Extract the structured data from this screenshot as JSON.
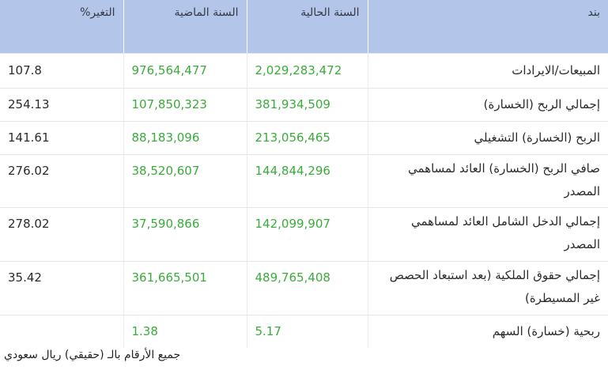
{
  "table": {
    "headers": {
      "item": "بند",
      "current": "السنة الحالية",
      "previous": "السنة الماضية",
      "change": "التغير%"
    },
    "rows": [
      {
        "item": "المبيعات/الايرادات",
        "current": "2,029,283,472",
        "previous": "976,564,477",
        "change": "107.8"
      },
      {
        "item": "إجمالي الربح (الخسارة)",
        "current": "381,934,509",
        "previous": "107,850,323",
        "change": "254.13"
      },
      {
        "item": "الربح (الخسارة) التشغيلي",
        "current": "213,056,465",
        "previous": "88,183,096",
        "change": "141.61"
      },
      {
        "item": "صافي الربح (الخسارة) العائد لمساهمي المصدر",
        "current": "144,844,296",
        "previous": "38,520,607",
        "change": "276.02"
      },
      {
        "item": "إجمالي الدخل الشامل العائد لمساهمي المصدر",
        "current": "142,099,907",
        "previous": "37,590,866",
        "change": "278.02"
      },
      {
        "item": "إجمالي حقوق الملكية (بعد استبعاد الحصص غير المسيطرة)",
        "current": "489,765,408",
        "previous": "361,665,501",
        "change": "35.42"
      },
      {
        "item": "ربحية (خسارة) السهم",
        "current": "5.17",
        "previous": "1.38",
        "change": ""
      }
    ]
  },
  "footnote": "جميع الأرقام بالـ (حقيقي) ريال سعودي",
  "colors": {
    "header_bg": "#b4c5ea",
    "number_green": "#3aab3a",
    "text": "#2b2b2b"
  }
}
